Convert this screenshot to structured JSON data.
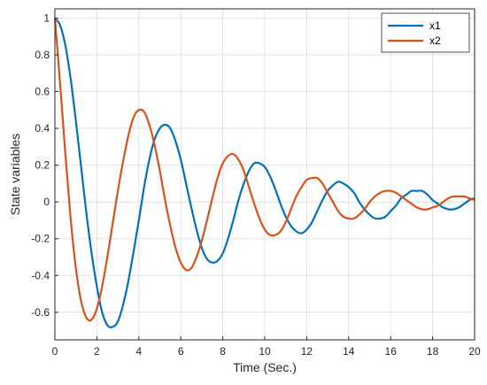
{
  "chart_data": {
    "type": "line",
    "title": "",
    "xlabel": "Time (Sec.)",
    "ylabel": "State variables",
    "xlim": [
      0,
      20
    ],
    "ylim": [
      -0.75,
      1.05
    ],
    "grid": true,
    "legend_position": "top-right",
    "x_ticks": [
      "0",
      "2",
      "4",
      "6",
      "8",
      "10",
      "12",
      "14",
      "16",
      "18",
      "20"
    ],
    "y_ticks": [
      "-0.6",
      "-0.4",
      "-0.2",
      "0",
      "0.2",
      "0.4",
      "0.6",
      "0.8",
      "1"
    ],
    "x_tick_values": [
      0,
      2,
      4,
      6,
      8,
      10,
      12,
      14,
      16,
      18,
      20
    ],
    "y_tick_values": [
      -0.6,
      -0.4,
      -0.2,
      0,
      0.2,
      0.4,
      0.6,
      0.8,
      1
    ],
    "series": [
      {
        "name": "x1",
        "color": "#0072BD",
        "x": [
          0,
          0.25,
          0.5,
          0.75,
          1,
          1.25,
          1.5,
          1.75,
          2,
          2.25,
          2.5,
          2.75,
          3,
          3.25,
          3.5,
          3.75,
          4,
          4.25,
          4.5,
          4.75,
          5,
          5.25,
          5.5,
          5.75,
          6,
          6.25,
          6.5,
          6.75,
          7,
          7.25,
          7.5,
          7.75,
          8,
          8.25,
          8.5,
          8.75,
          9,
          9.25,
          9.5,
          9.75,
          10,
          10.25,
          10.5,
          10.75,
          11,
          11.25,
          11.5,
          11.75,
          12,
          12.25,
          12.5,
          12.75,
          13,
          13.25,
          13.5,
          13.75,
          14,
          14.25,
          14.5,
          14.75,
          15,
          15.25,
          15.5,
          15.75,
          16,
          16.25,
          16.5,
          16.75,
          17,
          17.25,
          17.5,
          17.75,
          18,
          18.25,
          18.5,
          18.75,
          19,
          19.25,
          19.5,
          19.75,
          20
        ],
        "y": [
          1.0,
          0.96,
          0.85,
          0.67,
          0.44,
          0.19,
          -0.06,
          -0.28,
          -0.46,
          -0.6,
          -0.67,
          -0.68,
          -0.65,
          -0.56,
          -0.43,
          -0.27,
          -0.1,
          0.08,
          0.23,
          0.34,
          0.4,
          0.42,
          0.4,
          0.33,
          0.23,
          0.1,
          -0.03,
          -0.15,
          -0.25,
          -0.31,
          -0.33,
          -0.32,
          -0.28,
          -0.2,
          -0.1,
          0.01,
          0.1,
          0.17,
          0.21,
          0.21,
          0.19,
          0.14,
          0.07,
          -0.01,
          -0.08,
          -0.13,
          -0.16,
          -0.17,
          -0.15,
          -0.11,
          -0.05,
          0.01,
          0.06,
          0.09,
          0.11,
          0.1,
          0.08,
          0.05,
          0.0,
          -0.04,
          -0.07,
          -0.09,
          -0.09,
          -0.08,
          -0.05,
          -0.02,
          0.02,
          0.04,
          0.06,
          0.06,
          0.06,
          0.04,
          0.01,
          -0.01,
          -0.03,
          -0.04,
          -0.04,
          -0.03,
          -0.01,
          0.01,
          0.02
        ]
      },
      {
        "name": "x2",
        "color": "#D95319",
        "x": [
          0,
          0.25,
          0.5,
          0.75,
          1,
          1.25,
          1.5,
          1.75,
          2,
          2.25,
          2.5,
          2.75,
          3,
          3.25,
          3.5,
          3.75,
          4,
          4.25,
          4.5,
          4.75,
          5,
          5.25,
          5.5,
          5.75,
          6,
          6.25,
          6.5,
          6.75,
          7,
          7.25,
          7.5,
          7.75,
          8,
          8.25,
          8.5,
          8.75,
          9,
          9.25,
          9.5,
          9.75,
          10,
          10.25,
          10.5,
          10.75,
          11,
          11.25,
          11.5,
          11.75,
          12,
          12.25,
          12.5,
          12.75,
          13,
          13.25,
          13.5,
          13.75,
          14,
          14.25,
          14.5,
          14.75,
          15,
          15.25,
          15.5,
          15.75,
          16,
          16.25,
          16.5,
          16.75,
          17,
          17.25,
          17.5,
          17.75,
          18,
          18.25,
          18.5,
          18.75,
          19,
          19.25,
          19.5,
          19.75,
          20
        ],
        "y": [
          1.0,
          0.64,
          0.26,
          -0.09,
          -0.36,
          -0.54,
          -0.63,
          -0.64,
          -0.58,
          -0.46,
          -0.3,
          -0.12,
          0.06,
          0.22,
          0.36,
          0.46,
          0.5,
          0.49,
          0.42,
          0.31,
          0.17,
          0.01,
          -0.13,
          -0.25,
          -0.33,
          -0.37,
          -0.36,
          -0.3,
          -0.21,
          -0.1,
          0.02,
          0.13,
          0.21,
          0.25,
          0.26,
          0.23,
          0.17,
          0.08,
          -0.01,
          -0.09,
          -0.15,
          -0.18,
          -0.18,
          -0.16,
          -0.11,
          -0.04,
          0.03,
          0.08,
          0.12,
          0.13,
          0.13,
          0.1,
          0.05,
          0.0,
          -0.05,
          -0.08,
          -0.09,
          -0.09,
          -0.07,
          -0.04,
          0.0,
          0.03,
          0.05,
          0.06,
          0.06,
          0.05,
          0.03,
          0.01,
          -0.01,
          -0.03,
          -0.04,
          -0.04,
          -0.03,
          -0.02,
          0.0,
          0.02,
          0.03,
          0.03,
          0.03,
          0.02,
          0.01
        ]
      }
    ]
  }
}
